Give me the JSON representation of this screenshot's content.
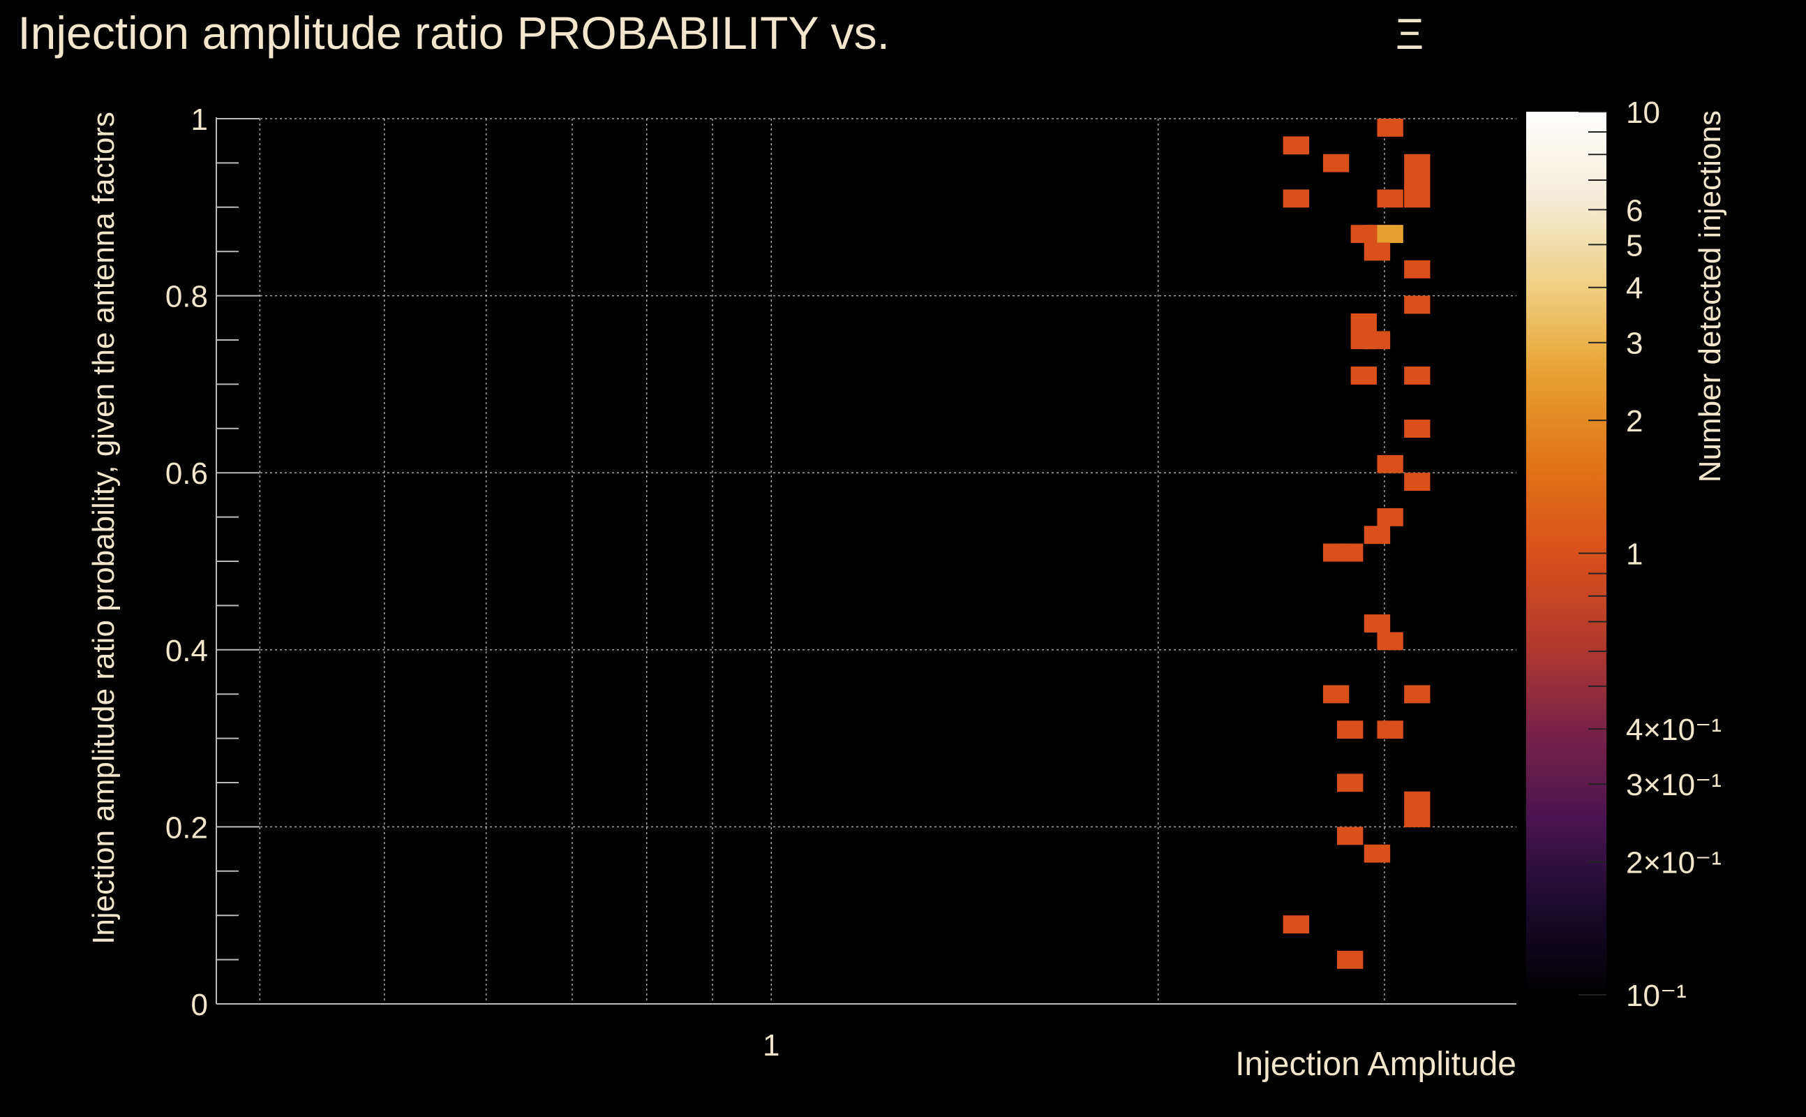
{
  "chart_data": {
    "type": "heatmap",
    "title": "Injection amplitude ratio PROBABILITY vs.",
    "title_symbol": "Ξ",
    "xlabel": "Injection Amplitude",
    "ylabel": "Injection amplitude ratio probability, given the antenna factors",
    "colorbar_label": "Number detected injections",
    "x_scale": "log",
    "xlim": [
      0.37,
      3.8
    ],
    "ylim": [
      0,
      1
    ],
    "y_ticks": [
      {
        "value": 0,
        "label": "0"
      },
      {
        "value": 0.2,
        "label": "0.2"
      },
      {
        "value": 0.4,
        "label": "0.4"
      },
      {
        "value": 0.6,
        "label": "0.6"
      },
      {
        "value": 0.8,
        "label": "0.8"
      },
      {
        "value": 1,
        "label": "1"
      }
    ],
    "x_ticks": [
      {
        "value": 1,
        "label": "1"
      }
    ],
    "x_minor_grid": [
      0.4,
      0.5,
      0.6,
      0.7,
      0.8,
      0.9,
      2,
      3
    ],
    "zlim": [
      0.1,
      10
    ],
    "z_scale": "log",
    "colorbar_ticks": [
      {
        "value": 10,
        "label": "10"
      },
      {
        "value": 6,
        "label": "6"
      },
      {
        "value": 5,
        "label": "5"
      },
      {
        "value": 4,
        "label": "4"
      },
      {
        "value": 3,
        "label": "3"
      },
      {
        "value": 2,
        "label": "2"
      },
      {
        "value": 1,
        "label": "1"
      },
      {
        "value": 0.4,
        "label": "4×10⁻¹"
      },
      {
        "value": 0.3,
        "label": "3×10⁻¹"
      },
      {
        "value": 0.2,
        "label": "2×10⁻¹"
      },
      {
        "value": 0.1,
        "label": "10⁻¹"
      }
    ],
    "bin_width_log10": 0.02,
    "bin_height": 0.02,
    "cells": [
      {
        "x": 3.03,
        "y": 0.99,
        "count": 1
      },
      {
        "x": 2.56,
        "y": 0.97,
        "count": 1
      },
      {
        "x": 2.75,
        "y": 0.95,
        "count": 1
      },
      {
        "x": 3.18,
        "y": 0.95,
        "count": 1
      },
      {
        "x": 3.18,
        "y": 0.93,
        "count": 1
      },
      {
        "x": 2.56,
        "y": 0.91,
        "count": 1
      },
      {
        "x": 3.03,
        "y": 0.91,
        "count": 1
      },
      {
        "x": 3.18,
        "y": 0.91,
        "count": 1
      },
      {
        "x": 2.89,
        "y": 0.87,
        "count": 1
      },
      {
        "x": 2.96,
        "y": 0.87,
        "count": 1
      },
      {
        "x": 3.03,
        "y": 0.87,
        "count": 2
      },
      {
        "x": 2.96,
        "y": 0.85,
        "count": 1
      },
      {
        "x": 3.18,
        "y": 0.83,
        "count": 1
      },
      {
        "x": 3.18,
        "y": 0.79,
        "count": 1
      },
      {
        "x": 2.89,
        "y": 0.77,
        "count": 1
      },
      {
        "x": 2.89,
        "y": 0.75,
        "count": 1
      },
      {
        "x": 2.96,
        "y": 0.75,
        "count": 1
      },
      {
        "x": 2.89,
        "y": 0.71,
        "count": 1
      },
      {
        "x": 3.18,
        "y": 0.71,
        "count": 1
      },
      {
        "x": 3.18,
        "y": 0.65,
        "count": 1
      },
      {
        "x": 3.03,
        "y": 0.61,
        "count": 1
      },
      {
        "x": 3.18,
        "y": 0.59,
        "count": 1
      },
      {
        "x": 3.03,
        "y": 0.55,
        "count": 1
      },
      {
        "x": 2.96,
        "y": 0.53,
        "count": 1
      },
      {
        "x": 2.75,
        "y": 0.51,
        "count": 1
      },
      {
        "x": 2.82,
        "y": 0.51,
        "count": 1
      },
      {
        "x": 2.96,
        "y": 0.43,
        "count": 1
      },
      {
        "x": 3.03,
        "y": 0.41,
        "count": 1
      },
      {
        "x": 2.75,
        "y": 0.35,
        "count": 1
      },
      {
        "x": 3.18,
        "y": 0.35,
        "count": 1
      },
      {
        "x": 2.82,
        "y": 0.31,
        "count": 1
      },
      {
        "x": 3.03,
        "y": 0.31,
        "count": 1
      },
      {
        "x": 2.82,
        "y": 0.25,
        "count": 1
      },
      {
        "x": 3.18,
        "y": 0.23,
        "count": 1
      },
      {
        "x": 3.18,
        "y": 0.21,
        "count": 1
      },
      {
        "x": 2.82,
        "y": 0.19,
        "count": 1
      },
      {
        "x": 2.96,
        "y": 0.17,
        "count": 1
      },
      {
        "x": 2.56,
        "y": 0.09,
        "count": 1
      },
      {
        "x": 2.82,
        "y": 0.05,
        "count": 1
      }
    ],
    "palette": [
      "#000004",
      "#1b0c41",
      "#4a0c6b",
      "#781c6d",
      "#a52c60",
      "#cf4446",
      "#ed6925",
      "#fb9b06",
      "#f7d13d",
      "#fcffa4"
    ],
    "colorbar_gradient": [
      "#000000",
      "#1a0b2e",
      "#4a1450",
      "#7a2248",
      "#b33a2c",
      "#d9501b",
      "#e07418",
      "#e8a030",
      "#efcf80",
      "#f4ecd8",
      "#ffffff"
    ],
    "cell_color_1": "#d9501b",
    "cell_color_2": "#e8a030",
    "text_color": "#f2e6cc",
    "grid_color": "#cfcfcf"
  }
}
